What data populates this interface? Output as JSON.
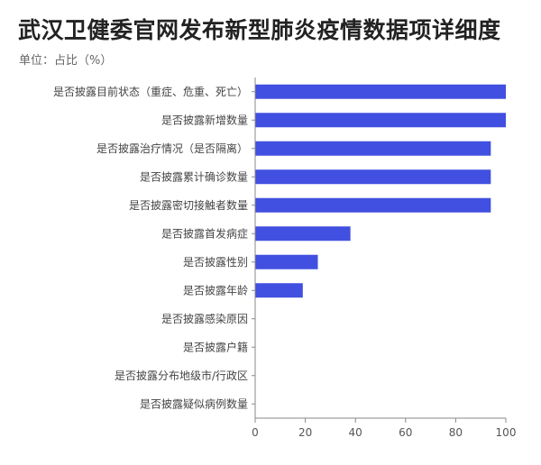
{
  "title": "武汉卫健委官网发布新型肺炎疫情数据项详细度",
  "subtitle": "单位：占比（%）",
  "colors": {
    "bar": "#4150E0",
    "axis": "#888888",
    "tick": "#555555"
  },
  "chart_data": {
    "type": "bar",
    "orientation": "horizontal",
    "title": "武汉卫健委官网发布新型肺炎疫情数据项详细度",
    "subtitle": "单位：占比（%）",
    "xlabel": "",
    "ylabel": "",
    "xlim": [
      0,
      100
    ],
    "xticks": [
      0,
      20,
      40,
      60,
      80,
      100
    ],
    "grid": false,
    "categories": [
      "是否披露目前状态（重症、危重、死亡）",
      "是否披露新增数量",
      "是否披露治疗情况（是否隔离）",
      "是否披露累计确诊数量",
      "是否披露密切接触者数量",
      "是否披露首发病症",
      "是否披露性别",
      "是否披露年龄",
      "是否披露感染原因",
      "是否披露户籍",
      "是否披露分布地级市/行政区",
      "是否披露疑似病例数量"
    ],
    "values": [
      100,
      100,
      94,
      94,
      94,
      38,
      25,
      19,
      0,
      0,
      0,
      0
    ]
  }
}
